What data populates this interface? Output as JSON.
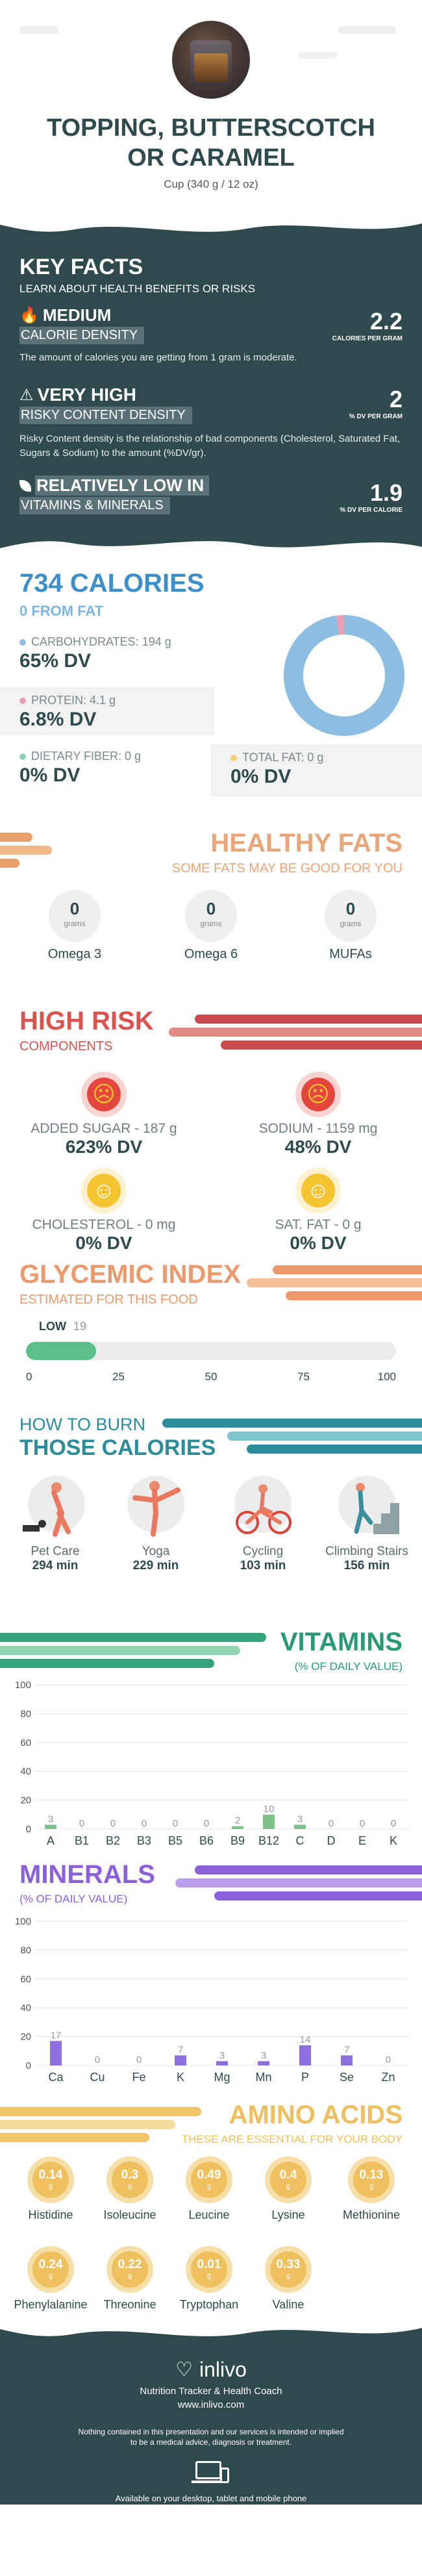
{
  "header": {
    "title_line1": "TOPPING, BUTTERSCOTCH",
    "title_line2": "OR CARAMEL",
    "serving": "Cup (340 g / 12 oz)"
  },
  "keyfacts": {
    "title": "KEY FACTS",
    "subtitle": "LEARN ABOUT HEALTH BENEFITS OR RISKS",
    "items": [
      {
        "level": "MEDIUM",
        "label": "CALORIE DENSITY",
        "desc": "The amount of calories you are getting from 1 gram is moderate.",
        "value": "2.2",
        "unit": "CALORIES PER GRAM",
        "icon": "flame-icon"
      },
      {
        "level": "VERY HIGH",
        "label": "RISKY CONTENT DENSITY",
        "desc": "Risky Content density is the relationship of bad components (Cholesterol, Saturated Fat, Sugars & Sodium) to the amount (%DV/gr).",
        "value": "2",
        "unit": "% DV PER GRAM",
        "icon": "warning-icon"
      },
      {
        "level": "RELATIVELY LOW  IN",
        "label": "VITAMINS & MINERALS",
        "desc": "",
        "value": "1.9",
        "unit": "% DV PER CALORIE",
        "icon": "leaf-icon"
      }
    ]
  },
  "calories": {
    "title": "734 CALORIES",
    "fat": "0 FROM FAT",
    "macros": [
      {
        "label": "CARBOHYDRATES: 194 g",
        "dv": "65% DV",
        "color": "#8dbde0"
      },
      {
        "label": "PROTEIN: 4.1 g",
        "dv": "6.8% DV",
        "color": "#e8a0b4"
      },
      {
        "label": "DIETARY FIBER: 0 g",
        "dv": "0% DV",
        "color": "#8fd3b0"
      },
      {
        "label": "TOTAL FAT: 0 g",
        "dv": "0% DV",
        "color": "#f4d27a"
      }
    ],
    "donut": [
      {
        "name": "carbohydrates",
        "value": 194,
        "color": "#8dbde0"
      },
      {
        "name": "protein",
        "value": 4.1,
        "color": "#e8a0b4"
      }
    ]
  },
  "fats": {
    "title": "HEALTHY FATS",
    "subtitle": "SOME FATS MAY BE GOOD FOR YOU",
    "items": [
      {
        "value": "0",
        "unit": "grams",
        "label": "Omega 3"
      },
      {
        "value": "0",
        "unit": "grams",
        "label": "Omega 6"
      },
      {
        "value": "0",
        "unit": "grams",
        "label": "MUFAs"
      }
    ]
  },
  "risk": {
    "title": "HIGH RISK",
    "subtitle": "COMPONENTS",
    "items": [
      {
        "label": "ADDED SUGAR - 187 g",
        "dv": "623% DV",
        "face": "sad",
        "color": "#e3463c",
        "icon": "sad-face-icon"
      },
      {
        "label": "SODIUM - 1159 mg",
        "dv": "48% DV",
        "face": "sad",
        "color": "#e3463c",
        "icon": "sad-face-icon"
      },
      {
        "label": "CHOLESTEROL - 0 mg",
        "dv": "0% DV",
        "face": "happy",
        "color": "#f6c431",
        "icon": "happy-face-icon"
      },
      {
        "label": "SAT. FAT - 0 g",
        "dv": "0% DV",
        "face": "happy",
        "color": "#f6c431",
        "icon": "happy-face-icon"
      }
    ]
  },
  "glycemic": {
    "title": "GLYCEMIC INDEX",
    "subtitle": "ESTIMATED FOR THIS FOOD",
    "level": "LOW",
    "value": "19",
    "gi": 19,
    "ticks": [
      "0",
      "25",
      "50",
      "75",
      "100"
    ]
  },
  "burn": {
    "title1": "HOW TO BURN",
    "title2": "THOSE CALORIES",
    "items": [
      {
        "label": "Pet Care",
        "time": "294 min",
        "icon": "pet-care-icon"
      },
      {
        "label": "Yoga",
        "time": "229 min",
        "icon": "yoga-icon"
      },
      {
        "label": "Cycling",
        "time": "103 min",
        "icon": "cycling-icon"
      },
      {
        "label": "Climbing Stairs",
        "time": "156 min",
        "icon": "climbing-stairs-icon"
      }
    ]
  },
  "vitamins": {
    "title": "VITAMINS",
    "subtitle": "(% OF DAILY VALUE)",
    "chart_data": {
      "type": "bar",
      "categories": [
        "A",
        "B1",
        "B2",
        "B3",
        "B5",
        "B6",
        "B9",
        "B12",
        "C",
        "D",
        "E",
        "K"
      ],
      "values": [
        3,
        0,
        0,
        0,
        0,
        0,
        2,
        10,
        3,
        0,
        0,
        0
      ],
      "ylim": [
        0,
        100
      ],
      "yticks": [
        "0",
        "20",
        "40",
        "60",
        "80",
        "100"
      ],
      "color": "#7ec18b"
    }
  },
  "minerals": {
    "title": "MINERALS",
    "subtitle": "(% OF DAILY VALUE)",
    "chart_data": {
      "type": "bar",
      "categories": [
        "Ca",
        "Cu",
        "Fe",
        "K",
        "Mg",
        "Mn",
        "P",
        "Se",
        "Zn"
      ],
      "values": [
        17,
        0,
        0,
        7,
        3,
        3,
        14,
        7,
        0
      ],
      "ylim": [
        0,
        100
      ],
      "yticks": [
        "0",
        "20",
        "40",
        "60",
        "80",
        "100"
      ],
      "color": "#8e6fe0"
    }
  },
  "amino": {
    "title": "AMINO ACIDS",
    "subtitle": "THESE ARE ESSENTIAL FOR YOUR BODY",
    "items": [
      {
        "value": "0.14",
        "unit": "g",
        "label": "Histidine"
      },
      {
        "value": "0.3",
        "unit": "g",
        "label": "Isoleucine"
      },
      {
        "value": "0.49",
        "unit": "g",
        "label": "Leucine"
      },
      {
        "value": "0.4",
        "unit": "g",
        "label": "Lysine"
      },
      {
        "value": "0.13",
        "unit": "g",
        "label": "Methionine"
      },
      {
        "value": "0.24",
        "unit": "g",
        "label": "Phenylalanine"
      },
      {
        "value": "0.22",
        "unit": "g",
        "label": "Threonine"
      },
      {
        "value": "0.01",
        "unit": "g",
        "label": "Tryptophan"
      },
      {
        "value": "0.33",
        "unit": "g",
        "label": "Valine"
      }
    ]
  },
  "footer": {
    "brand": "inlivo",
    "tagline": "Nutrition Tracker & Health Coach",
    "url": "www.inlivo.com",
    "disclaimer1": "Nothing contained in this presentation and our services is intended or implied",
    "disclaimer2": "to be a medical advice, diagnosis or treatment.",
    "available": "Available on your desktop, tablet and mobile phone"
  }
}
